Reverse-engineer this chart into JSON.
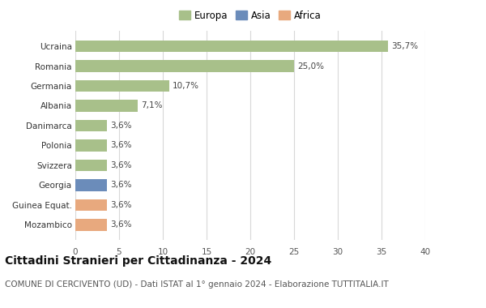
{
  "countries": [
    "Mozambico",
    "Guinea Equat.",
    "Georgia",
    "Svizzera",
    "Polonia",
    "Danimarca",
    "Albania",
    "Germania",
    "Romania",
    "Ucraina"
  ],
  "values": [
    3.6,
    3.6,
    3.6,
    3.6,
    3.6,
    3.6,
    7.1,
    10.7,
    25.0,
    35.7
  ],
  "labels": [
    "3,6%",
    "3,6%",
    "3,6%",
    "3,6%",
    "3,6%",
    "3,6%",
    "7,1%",
    "10,7%",
    "25,0%",
    "35,7%"
  ],
  "colors": [
    "#e8a97e",
    "#e8a97e",
    "#6b8cba",
    "#a8c08a",
    "#a8c08a",
    "#a8c08a",
    "#a8c08a",
    "#a8c08a",
    "#a8c08a",
    "#a8c08a"
  ],
  "legend_labels": [
    "Europa",
    "Asia",
    "Africa"
  ],
  "legend_colors": [
    "#a8c08a",
    "#6b8cba",
    "#e8a97e"
  ],
  "title": "Cittadini Stranieri per Cittadinanza - 2024",
  "subtitle": "COMUNE DI CERCIVENTO (UD) - Dati ISTAT al 1° gennaio 2024 - Elaborazione TUTTITALIA.IT",
  "xlim": [
    0,
    40
  ],
  "xticks": [
    0,
    5,
    10,
    15,
    20,
    25,
    30,
    35,
    40
  ],
  "background_color": "#ffffff",
  "grid_color": "#d8d8d8",
  "bar_height": 0.6,
  "title_fontsize": 10,
  "subtitle_fontsize": 7.5,
  "label_fontsize": 7.5,
  "tick_fontsize": 7.5,
  "legend_fontsize": 8.5
}
